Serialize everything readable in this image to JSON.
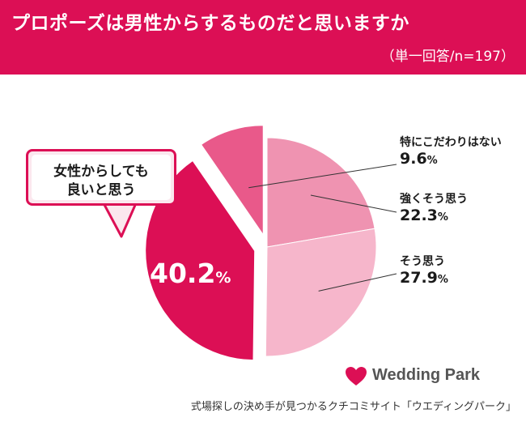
{
  "header": {
    "title": "プロポーズは男性からするものだと思いますか",
    "subtitle": "（単一回答/n=197）"
  },
  "callout": {
    "line1": "女性からしても",
    "line2": "良いと思う"
  },
  "percent_sign": "%",
  "colors": {
    "brand": "#dc0f55",
    "slice_female_ok": "#dc0f55",
    "slice_so_omou": "#f6b6cb",
    "slice_tsuyoku": "#ef93b1",
    "slice_kodawari": "#e9598a"
  },
  "chart_data": {
    "type": "pie",
    "title": "プロポーズは男性からするものだと思いますか",
    "start": "12 o'clock",
    "direction": "clockwise",
    "slices": [
      {
        "label": "強くそう思う",
        "value": 22.3,
        "display": "22.3",
        "color": "#ef93b1",
        "exploded": false
      },
      {
        "label": "そう思う",
        "value": 27.9,
        "display": "27.9",
        "color": "#f6b6cb",
        "exploded": false
      },
      {
        "label": "女性からしても良いと思う",
        "value": 40.2,
        "display": "40.2",
        "color": "#dc0f55",
        "exploded": true
      },
      {
        "label": "特にこだわりはない",
        "value": 9.6,
        "display": "9.6",
        "color": "#e9598a",
        "exploded": true
      }
    ]
  },
  "logo": {
    "text": "Wedding Park",
    "icon": "heart-icon"
  },
  "footer": {
    "text": "式場探しの決め手が見つかるクチコミサイト「ウエディングパーク」"
  }
}
